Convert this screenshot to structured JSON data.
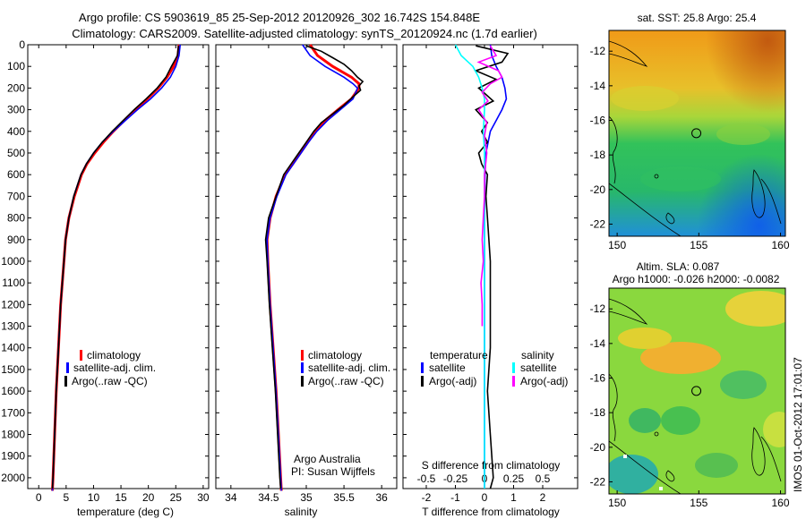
{
  "header": {
    "title_line1": "Argo profile: CS 5903619_85 25-Sep-2012 20120926_302 16.742S 154.848E",
    "title_line2": "Climatology: CARS2009. Satellite-adjusted climatology: synTS_20120924.nc (1.7d earlier)"
  },
  "footer": {
    "credit_org": "Argo Australia",
    "credit_pi": "PI: Susan Wijffels",
    "vertical_stamp": "IMOS 01-Oct-2012 17:01:07"
  },
  "colors": {
    "climatology": "#ff0000",
    "satellite_adj": "#0000ff",
    "argo": "#000000",
    "satellite_s": "#00ffff",
    "argo_adj_s": "#ff00ff"
  },
  "chart_data": [
    {
      "type": "line",
      "panel": "temperature",
      "xlabel": "temperature (deg C)",
      "ylabel": "",
      "xlim": [
        -2,
        31
      ],
      "ylim": [
        2050,
        0
      ],
      "xticks": [
        0,
        5,
        10,
        15,
        20,
        25,
        30
      ],
      "yticks": [
        0,
        100,
        200,
        300,
        400,
        500,
        600,
        700,
        800,
        900,
        1000,
        1100,
        1200,
        1300,
        1400,
        1500,
        1600,
        1700,
        1800,
        1900,
        2000
      ],
      "legend": [
        "climatology",
        "satellite-adj. clim.",
        "Argo(..raw -QC)"
      ],
      "series": [
        {
          "name": "climatology",
          "pressure": [
            0,
            50,
            100,
            150,
            200,
            250,
            300,
            350,
            400,
            450,
            500,
            550,
            600,
            700,
            800,
            900,
            1000,
            1200,
            1400,
            1600,
            1800,
            2000,
            2060
          ],
          "values": [
            25.6,
            25.4,
            24.6,
            23.4,
            21.8,
            19.8,
            17.6,
            15.6,
            13.6,
            11.8,
            10.2,
            8.8,
            7.8,
            6.5,
            5.5,
            4.9,
            4.6,
            4.0,
            3.6,
            3.2,
            2.9,
            2.6,
            2.5
          ]
        },
        {
          "name": "satellite-adj. clim.",
          "pressure": [
            0,
            50,
            100,
            150,
            200,
            250,
            300,
            350,
            400,
            450,
            500,
            550,
            600,
            700,
            800,
            900,
            1000,
            1200,
            1400,
            1600,
            1800,
            2000,
            2060
          ],
          "values": [
            25.8,
            25.6,
            25.0,
            24.0,
            22.4,
            20.4,
            18.0,
            15.8,
            13.6,
            11.6,
            10.0,
            8.7,
            7.7,
            6.4,
            5.5,
            4.9,
            4.6,
            4.0,
            3.6,
            3.2,
            2.9,
            2.6,
            2.5
          ]
        },
        {
          "name": "Argo(..raw -QC)",
          "pressure": [
            5,
            50,
            100,
            150,
            200,
            250,
            300,
            350,
            400,
            450,
            500,
            550,
            600,
            700,
            800,
            900,
            1000,
            1200,
            1400,
            1600,
            1800,
            2000,
            2050
          ],
          "values": [
            25.5,
            25.3,
            24.2,
            23.2,
            21.6,
            19.6,
            17.4,
            15.4,
            13.4,
            11.6,
            10.0,
            8.7,
            7.7,
            6.4,
            5.5,
            4.9,
            4.6,
            4.0,
            3.6,
            3.2,
            2.9,
            2.6,
            2.5
          ]
        }
      ]
    },
    {
      "type": "line",
      "panel": "salinity",
      "xlabel": "salinity",
      "xlim": [
        33.8,
        36.2
      ],
      "ylim": [
        2050,
        0
      ],
      "xticks": [
        34,
        34.5,
        35,
        35.5,
        36
      ],
      "legend": [
        "climatology",
        "satellite-adj. clim.",
        "Argo(..raw -QC)"
      ],
      "series": [
        {
          "name": "climatology",
          "pressure": [
            0,
            50,
            100,
            150,
            180,
            200,
            250,
            300,
            350,
            400,
            450,
            500,
            550,
            600,
            700,
            800,
            900,
            1000,
            1200,
            1400,
            1600,
            1800,
            2000,
            2060
          ],
          "values": [
            35.05,
            35.15,
            35.35,
            35.6,
            35.7,
            35.7,
            35.6,
            35.42,
            35.25,
            35.12,
            35.02,
            34.92,
            34.82,
            34.72,
            34.6,
            34.52,
            34.48,
            34.49,
            34.52,
            34.56,
            34.6,
            34.63,
            34.66,
            34.67
          ]
        },
        {
          "name": "satellite-adj. clim.",
          "pressure": [
            0,
            50,
            100,
            150,
            180,
            200,
            250,
            300,
            350,
            400,
            450,
            500,
            550,
            600,
            700,
            800,
            900,
            1000,
            1200,
            1400,
            1600,
            1800,
            2000,
            2060
          ],
          "values": [
            34.95,
            35.05,
            35.25,
            35.5,
            35.62,
            35.68,
            35.62,
            35.45,
            35.28,
            35.14,
            35.03,
            34.93,
            34.83,
            34.73,
            34.61,
            34.52,
            34.48,
            34.49,
            34.52,
            34.56,
            34.6,
            34.63,
            34.66,
            34.67
          ]
        },
        {
          "name": "Argo(..raw -QC)",
          "pressure": [
            5,
            30,
            60,
            90,
            120,
            150,
            170,
            190,
            210,
            240,
            280,
            320,
            360,
            400,
            450,
            500,
            550,
            600,
            700,
            800,
            900,
            1000,
            1200,
            1400,
            1600,
            1800,
            2000,
            2050
          ],
          "values": [
            35.0,
            35.2,
            35.35,
            35.5,
            35.6,
            35.68,
            35.75,
            35.7,
            35.72,
            35.62,
            35.5,
            35.35,
            35.2,
            35.1,
            35.0,
            34.9,
            34.8,
            34.7,
            34.6,
            34.5,
            34.46,
            34.48,
            34.51,
            34.55,
            34.59,
            34.62,
            34.65,
            34.66
          ]
        }
      ]
    },
    {
      "type": "line",
      "panel": "difference",
      "xlabel": "T difference from climatology",
      "xlabel_top": "S difference from climatology",
      "xlim": [
        -2.8,
        3.2
      ],
      "ylim": [
        2050,
        0
      ],
      "xticks": [
        -2,
        -1,
        0,
        1,
        2
      ],
      "xticks_s": [
        "-0.5",
        "-0.25",
        "0",
        "0.25",
        "0.5"
      ],
      "legend_t_header": "temperature",
      "legend_s_header": "salinity",
      "legend": [
        "satellite",
        "Argo(-adj)",
        "satellite",
        "Argo(-adj)"
      ],
      "series": [
        {
          "name": "satellite",
          "quantity": "T",
          "pressure": [
            0,
            50,
            100,
            150,
            200,
            250,
            300,
            350,
            400,
            500,
            600,
            700,
            800,
            900,
            1000,
            1200,
            1400,
            1600,
            1800,
            2000,
            2050
          ],
          "values": [
            0.2,
            0.25,
            0.4,
            0.6,
            0.7,
            0.75,
            0.6,
            0.4,
            0.2,
            0.05,
            0.02,
            0.01,
            0.0,
            0.0,
            0.0,
            0.0,
            0.0,
            0.0,
            0.0,
            0.0,
            0.0
          ]
        },
        {
          "name": "Argo(-adj)",
          "quantity": "T",
          "pressure": [
            5,
            40,
            80,
            120,
            160,
            200,
            260,
            300,
            360,
            400,
            450,
            500,
            550,
            600,
            700,
            800,
            900,
            1000,
            1200,
            1400,
            1600,
            1800,
            2000,
            2050
          ],
          "values": [
            -0.3,
            0.8,
            0.6,
            -0.3,
            0.4,
            -0.2,
            0.3,
            -0.3,
            0.1,
            -0.1,
            0.1,
            -0.2,
            -0.1,
            0.1,
            0.05,
            0.1,
            0.15,
            0.2,
            0.2,
            0.2,
            0.1,
            0.2,
            0.3,
            0.2
          ]
        },
        {
          "name": "satellite",
          "quantity": "S",
          "pressure": [
            0,
            50,
            100,
            150,
            200,
            250,
            300,
            400,
            500,
            600,
            700,
            800,
            900,
            1000,
            1200,
            1400,
            1600,
            1800,
            2000,
            2050
          ],
          "values": [
            -0.25,
            -0.2,
            -0.1,
            -0.05,
            -0.02,
            0.0,
            0.0,
            -0.01,
            0.0,
            0.0,
            0.0,
            0.0,
            0.0,
            0.0,
            0.0,
            0.0,
            0.0,
            0.0,
            0.0,
            0.0
          ]
        },
        {
          "name": "Argo(-adj)",
          "quantity": "S",
          "pressure": [
            5,
            50,
            80,
            120,
            150,
            180,
            220,
            260,
            300,
            360,
            420,
            500,
            600,
            700,
            800,
            900,
            1000,
            1100,
            1200,
            1300
          ],
          "values": [
            0.05,
            0.1,
            -0.05,
            0.12,
            0.15,
            0.05,
            -0.02,
            0.03,
            -0.05,
            0.02,
            0.0,
            0.02,
            0.0,
            0.0,
            -0.01,
            -0.02,
            -0.01,
            -0.03,
            -0.02,
            -0.02
          ]
        }
      ]
    },
    {
      "type": "heatmap",
      "panel": "sst_map",
      "title": "sat. SST: 25.8 Argo: 25.4",
      "xlim": [
        149.5,
        160.3
      ],
      "ylim": [
        -22.7,
        -10.8
      ],
      "xticks": [
        150,
        155,
        160
      ],
      "yticks": [
        -12,
        -14,
        -16,
        -18,
        -20,
        -22
      ],
      "marker": {
        "lon": 154.848,
        "lat": -16.742
      }
    },
    {
      "type": "heatmap",
      "panel": "sla_map",
      "title_line1": "Altim. SLA: 0.087",
      "title_line2": "Argo h1000: -0.026 h2000: -0.0082",
      "xlim": [
        149.5,
        160.3
      ],
      "ylim": [
        -22.7,
        -10.8
      ],
      "xticks": [
        150,
        155,
        160
      ],
      "yticks": [
        -12,
        -14,
        -16,
        -18,
        -20,
        -22
      ],
      "marker": {
        "lon": 154.848,
        "lat": -16.742
      }
    }
  ]
}
